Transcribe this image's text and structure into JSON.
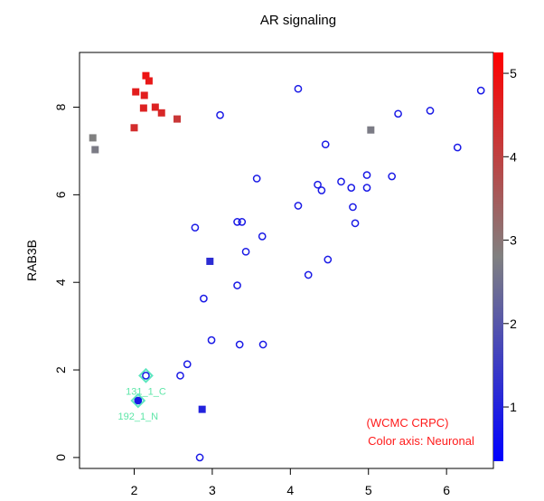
{
  "chart_data": {
    "type": "scatter",
    "title": "AR signaling",
    "xlabel": "",
    "ylabel": "RAB3B",
    "xlim": [
      1.3,
      6.6
    ],
    "ylim": [
      -0.25,
      9.25
    ],
    "xticks": [
      "2",
      "3",
      "4",
      "5",
      "6"
    ],
    "yticks": [
      "0",
      "2",
      "4",
      "6",
      "8"
    ],
    "colorbar": {
      "label": "",
      "ticks": [
        "1",
        "2",
        "3",
        "4",
        "5"
      ],
      "range": [
        0.35,
        5.25
      ],
      "low_color": "#0000ff",
      "mid_color": "#808080",
      "high_color": "#ff0000"
    },
    "annotation": [
      "(WCMC CRPC)",
      "Color axis: Neuronal"
    ],
    "filled_squares": [
      {
        "x": 2.15,
        "y": 8.72,
        "c": 4.9
      },
      {
        "x": 2.19,
        "y": 8.6,
        "c": 4.8
      },
      {
        "x": 2.02,
        "y": 8.35,
        "c": 4.7
      },
      {
        "x": 2.13,
        "y": 8.27,
        "c": 4.7
      },
      {
        "x": 2.12,
        "y": 7.98,
        "c": 4.6
      },
      {
        "x": 2.27,
        "y": 8.0,
        "c": 4.6
      },
      {
        "x": 2.35,
        "y": 7.87,
        "c": 4.5
      },
      {
        "x": 2.55,
        "y": 7.73,
        "c": 4.2
      },
      {
        "x": 2.0,
        "y": 7.53,
        "c": 4.4
      },
      {
        "x": 1.47,
        "y": 7.3,
        "c": 2.8
      },
      {
        "x": 1.5,
        "y": 7.03,
        "c": 2.7
      },
      {
        "x": 5.03,
        "y": 7.48,
        "c": 2.7
      },
      {
        "x": 2.97,
        "y": 4.48,
        "c": 1.2
      },
      {
        "x": 2.87,
        "y": 1.1,
        "c": 1.0
      }
    ],
    "open_circles": [
      {
        "x": 4.1,
        "y": 8.42
      },
      {
        "x": 6.44,
        "y": 8.38
      },
      {
        "x": 5.79,
        "y": 7.92
      },
      {
        "x": 5.38,
        "y": 7.85
      },
      {
        "x": 3.1,
        "y": 7.82
      },
      {
        "x": 4.45,
        "y": 7.15
      },
      {
        "x": 6.14,
        "y": 7.08
      },
      {
        "x": 4.98,
        "y": 6.45
      },
      {
        "x": 5.3,
        "y": 6.42
      },
      {
        "x": 3.57,
        "y": 6.37
      },
      {
        "x": 4.65,
        "y": 6.3
      },
      {
        "x": 4.35,
        "y": 6.23
      },
      {
        "x": 4.4,
        "y": 6.1
      },
      {
        "x": 4.78,
        "y": 6.16
      },
      {
        "x": 4.98,
        "y": 6.16
      },
      {
        "x": 4.1,
        "y": 5.75
      },
      {
        "x": 4.8,
        "y": 5.72
      },
      {
        "x": 3.32,
        "y": 5.38
      },
      {
        "x": 3.38,
        "y": 5.38
      },
      {
        "x": 4.83,
        "y": 5.35
      },
      {
        "x": 2.78,
        "y": 5.25
      },
      {
        "x": 3.64,
        "y": 5.05
      },
      {
        "x": 3.43,
        "y": 4.7
      },
      {
        "x": 4.48,
        "y": 4.52
      },
      {
        "x": 4.23,
        "y": 4.17
      },
      {
        "x": 3.32,
        "y": 3.93
      },
      {
        "x": 2.89,
        "y": 3.63
      },
      {
        "x": 2.99,
        "y": 2.68
      },
      {
        "x": 3.35,
        "y": 2.58
      },
      {
        "x": 3.65,
        "y": 2.58
      },
      {
        "x": 2.68,
        "y": 2.13
      },
      {
        "x": 2.59,
        "y": 1.87
      },
      {
        "x": 2.84,
        "y": 0.0
      }
    ],
    "highlighted": [
      {
        "label": "131_1_C",
        "x": 2.15,
        "y": 1.87,
        "filled": false
      },
      {
        "label": "192_1_N",
        "x": 2.05,
        "y": 1.3,
        "filled": true
      }
    ]
  }
}
